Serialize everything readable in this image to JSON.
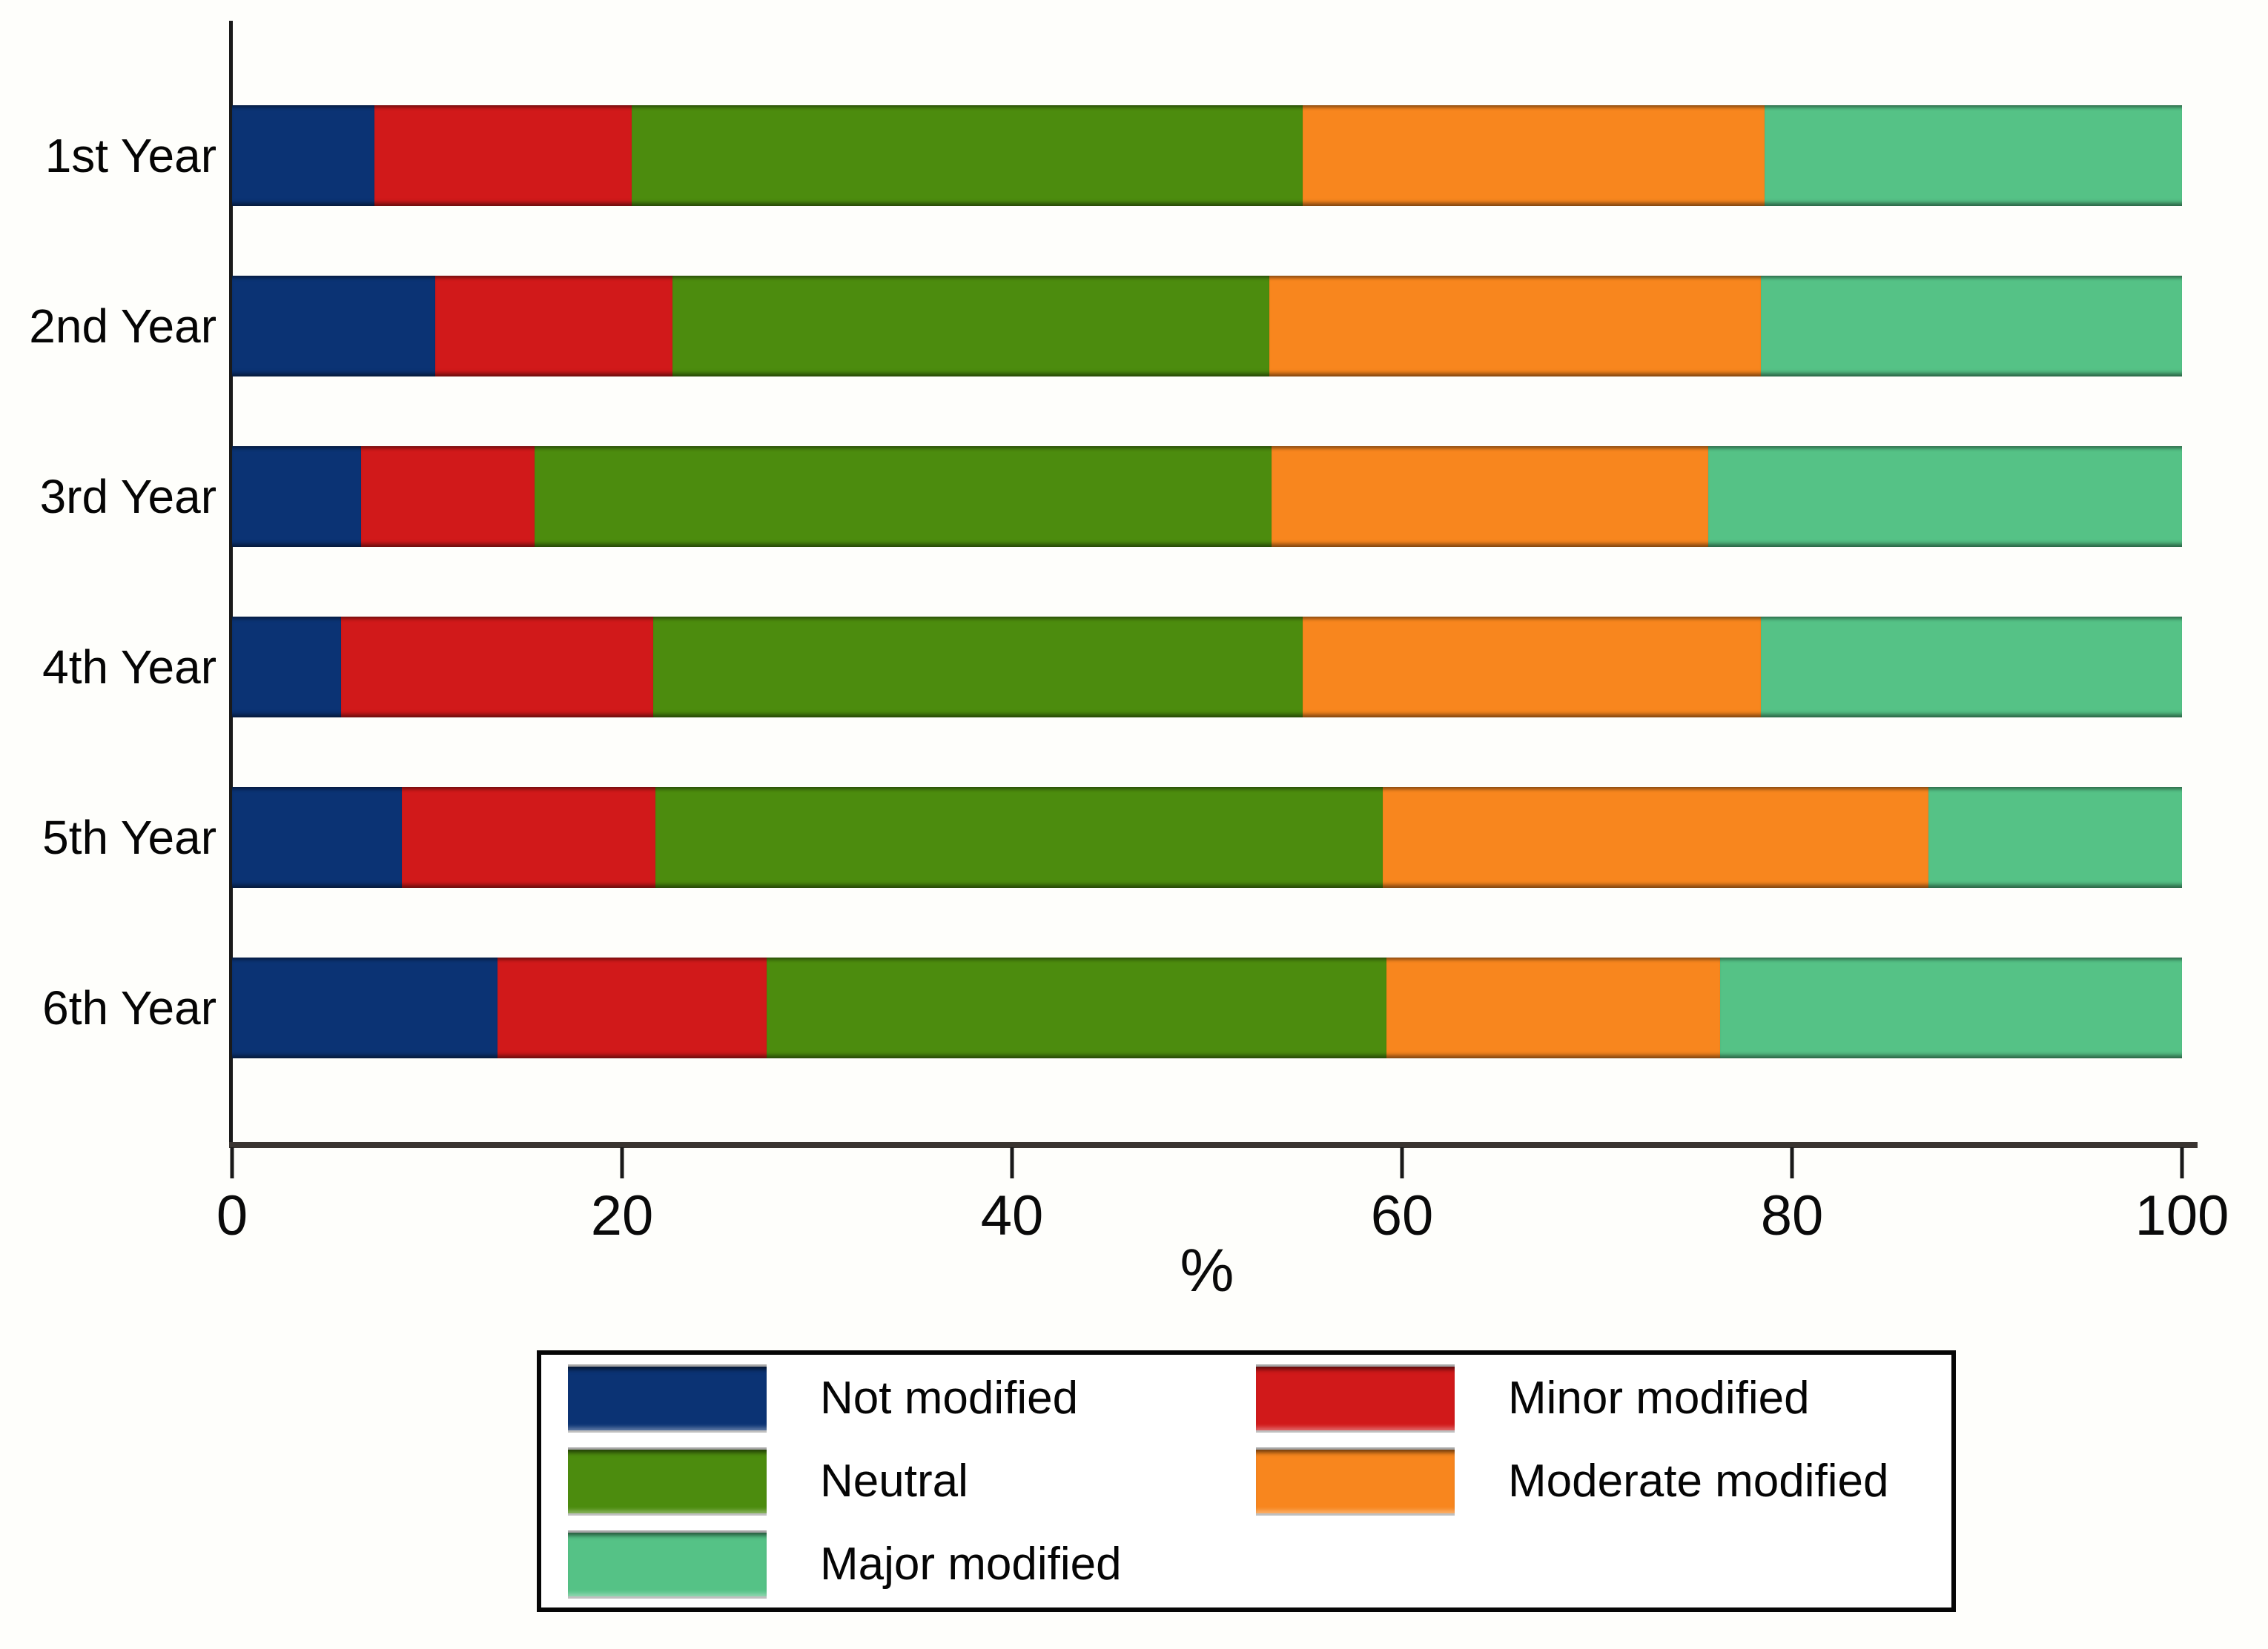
{
  "chart_data": {
    "type": "bar",
    "variant": "horizontal-stacked",
    "unit": "percent",
    "title": "",
    "xlabel": "%",
    "ylabel": "",
    "xlim": [
      0,
      100
    ],
    "x_ticks": [
      "0",
      "20",
      "40",
      "60",
      "80",
      "100"
    ],
    "grid": false,
    "categories": [
      "1st Year",
      "2nd Year",
      "3rd Year",
      "4th Year",
      "5th Year",
      "6th Year"
    ],
    "series": [
      {
        "name": "Not modified",
        "color": "#0b3374",
        "values": [
          7.3,
          10.4,
          6.6,
          5.6,
          8.7,
          13.6
        ]
      },
      {
        "name": "Minor modified",
        "color": "#d1191a",
        "values": [
          13.2,
          12.2,
          8.9,
          16.0,
          13.0,
          13.8
        ]
      },
      {
        "name": "Neutral",
        "color": "#4c8c0e",
        "values": [
          34.4,
          30.6,
          37.8,
          33.3,
          37.3,
          31.8
        ]
      },
      {
        "name": "Moderate modified",
        "color": "#f8861e",
        "values": [
          23.7,
          25.2,
          22.4,
          23.5,
          28.0,
          17.1
        ]
      },
      {
        "name": "Major modified",
        "color": "#55c286",
        "values": [
          21.4,
          21.6,
          24.3,
          21.6,
          13.0,
          23.7
        ]
      }
    ],
    "legend": {
      "position": "bottom",
      "columns": 2,
      "entries": [
        "Not modified",
        "Minor modified",
        "Neutral",
        "Moderate modified",
        "Major modified"
      ]
    }
  }
}
